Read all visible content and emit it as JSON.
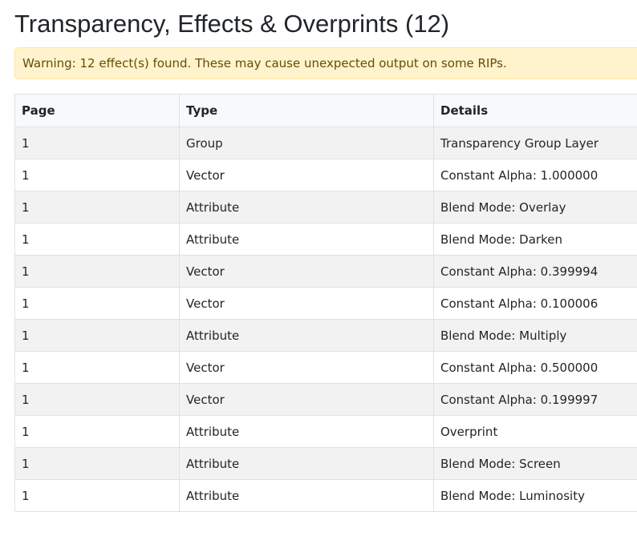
{
  "header": {
    "title": "Transparency, Effects & Overprints (12)"
  },
  "warning": "Warning: 12 effect(s) found. These may cause unexpected output on some RIPs.",
  "table": {
    "columns": [
      "Page",
      "Type",
      "Details"
    ],
    "rows": [
      [
        "1",
        "Group",
        "Transparency Group Layer"
      ],
      [
        "1",
        "Vector",
        "Constant Alpha: 1.000000"
      ],
      [
        "1",
        "Attribute",
        "Blend Mode: Overlay"
      ],
      [
        "1",
        "Attribute",
        "Blend Mode: Darken"
      ],
      [
        "1",
        "Vector",
        "Constant Alpha: 0.399994"
      ],
      [
        "1",
        "Vector",
        "Constant Alpha: 0.100006"
      ],
      [
        "1",
        "Attribute",
        "Blend Mode: Multiply"
      ],
      [
        "1",
        "Vector",
        "Constant Alpha: 0.500000"
      ],
      [
        "1",
        "Vector",
        "Constant Alpha: 0.199997"
      ],
      [
        "1",
        "Attribute",
        "Overprint"
      ],
      [
        "1",
        "Attribute",
        "Blend Mode: Screen"
      ],
      [
        "1",
        "Attribute",
        "Blend Mode: Luminosity"
      ]
    ]
  }
}
